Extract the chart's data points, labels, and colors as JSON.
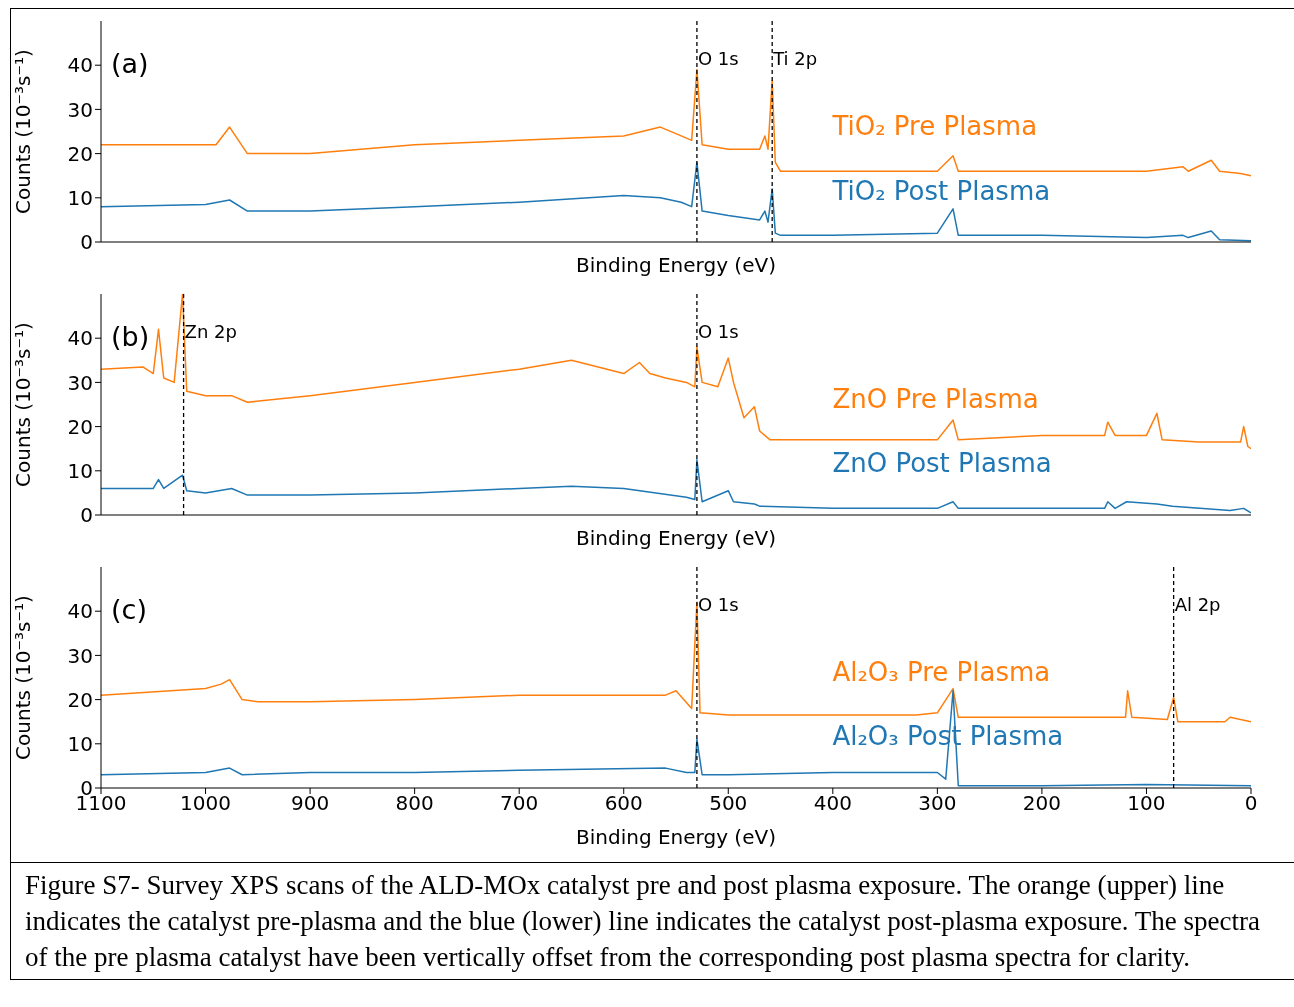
{
  "chart_data": [
    {
      "type": "line",
      "xlabel": "Binding Energy (eV)",
      "ylabel": "Counts (10⁻³s⁻¹)",
      "xlim": [
        1100,
        0
      ],
      "ylim": [
        0,
        50
      ],
      "xticks": [
        1100,
        1000,
        900,
        800,
        700,
        600,
        500,
        400,
        300,
        200,
        100,
        0
      ],
      "yticks": [
        0,
        10,
        20,
        30,
        40
      ],
      "tick_labels": "y",
      "grid": false,
      "legend": false,
      "marker": "none",
      "line_style": "solid",
      "annotations": [
        "(a)"
      ],
      "ref_lines": [
        {
          "axis": "x",
          "value": 530,
          "label": "O 1s",
          "color": "#000000",
          "line_style": "dashed"
        },
        {
          "axis": "x",
          "value": 458,
          "label": "Ti 2p",
          "color": "#000000",
          "line_style": "dashed"
        }
      ],
      "series": [
        {
          "name": "TiO₂ Pre Plasma",
          "color": "#ff7f0e",
          "x": [
            1100,
            1050,
            990,
            977,
            960,
            900,
            800,
            700,
            600,
            565,
            545,
            535,
            530,
            525,
            500,
            470,
            465,
            462,
            458,
            455,
            450,
            400,
            300,
            285,
            280,
            200,
            100,
            65,
            60,
            38,
            30,
            10,
            0
          ],
          "values": [
            22,
            22,
            22,
            26,
            20,
            20,
            22,
            23,
            24,
            26,
            24,
            23,
            39,
            22,
            21,
            21,
            24,
            21,
            36.5,
            18,
            16,
            16,
            16,
            19.5,
            16,
            16,
            16,
            17,
            16,
            18.5,
            16,
            15.5,
            15
          ]
        },
        {
          "name": "TiO₂ Post Plasma",
          "color": "#1f77b4",
          "x": [
            1100,
            1000,
            977,
            960,
            900,
            800,
            700,
            600,
            565,
            545,
            535,
            530,
            525,
            500,
            470,
            465,
            462,
            458,
            455,
            450,
            400,
            300,
            285,
            280,
            200,
            100,
            65,
            60,
            38,
            30,
            0
          ],
          "values": [
            8,
            8.5,
            9.5,
            7,
            7,
            8,
            9,
            10.5,
            10,
            9,
            8,
            18,
            7,
            6,
            5,
            7,
            4.5,
            12,
            2,
            1.5,
            1.5,
            2,
            7.5,
            1.5,
            1.5,
            1,
            1.5,
            1,
            2.5,
            0.5,
            0.3
          ]
        }
      ]
    },
    {
      "type": "line",
      "xlabel": "Binding Energy (eV)",
      "ylabel": "Counts (10⁻³s⁻¹)",
      "xlim": [
        1100,
        0
      ],
      "ylim": [
        0,
        50
      ],
      "xticks": [
        1100,
        1000,
        900,
        800,
        700,
        600,
        500,
        400,
        300,
        200,
        100,
        0
      ],
      "yticks": [
        0,
        10,
        20,
        30,
        40
      ],
      "tick_labels": "y",
      "grid": false,
      "legend": false,
      "marker": "none",
      "line_style": "solid",
      "annotations": [
        "(b)"
      ],
      "ref_lines": [
        {
          "axis": "x",
          "value": 1021,
          "label": "Zn 2p",
          "color": "#000000",
          "line_style": "dashed"
        },
        {
          "axis": "x",
          "value": 530,
          "label": "O 1s",
          "color": "#000000",
          "line_style": "dashed"
        }
      ],
      "series": [
        {
          "name": "ZnO Pre Plasma",
          "color": "#ff7f0e",
          "x": [
            1100,
            1060,
            1050,
            1045,
            1040,
            1030,
            1022,
            1018,
            1000,
            975,
            960,
            900,
            800,
            700,
            650,
            600,
            585,
            575,
            560,
            540,
            532,
            530,
            525,
            510,
            500,
            495,
            485,
            475,
            470,
            460,
            400,
            300,
            285,
            280,
            200,
            140,
            137,
            130,
            100,
            90,
            85,
            50,
            10,
            7,
            3,
            0
          ],
          "values": [
            33,
            33.5,
            32,
            42,
            31,
            30,
            50,
            28,
            27,
            27,
            25.5,
            27,
            30,
            33,
            35,
            32,
            34.5,
            32,
            31,
            30,
            29,
            38,
            30,
            29,
            35.5,
            30,
            22,
            24.5,
            19,
            17,
            17,
            17,
            21.5,
            17,
            18,
            18,
            21,
            18,
            18,
            23,
            17,
            16.5,
            16.5,
            20,
            15.5,
            15
          ]
        },
        {
          "name": "ZnO Post Plasma",
          "color": "#1f77b4",
          "x": [
            1100,
            1050,
            1045,
            1040,
            1022,
            1018,
            1000,
            975,
            960,
            900,
            800,
            700,
            650,
            600,
            540,
            532,
            530,
            525,
            500,
            495,
            475,
            470,
            400,
            300,
            285,
            280,
            140,
            137,
            130,
            119,
            90,
            75,
            20,
            7,
            0
          ],
          "values": [
            6,
            6,
            8,
            6,
            9,
            5.5,
            5,
            6,
            4.5,
            4.5,
            5,
            6,
            6.5,
            6,
            4,
            3.5,
            12.5,
            3,
            5.5,
            3,
            2.5,
            2,
            1.5,
            1.5,
            3,
            1.5,
            1.5,
            3,
            1.5,
            3,
            2.5,
            2,
            1,
            1.5,
            0.5
          ]
        }
      ]
    },
    {
      "type": "line",
      "xlabel": "Binding Energy (eV)",
      "ylabel": "Counts (10⁻³s⁻¹)",
      "xlim": [
        1100,
        0
      ],
      "ylim": [
        0,
        50
      ],
      "xticks": [
        1100,
        1000,
        900,
        800,
        700,
        600,
        500,
        400,
        300,
        200,
        100,
        0
      ],
      "yticks": [
        0,
        10,
        20,
        30,
        40
      ],
      "grid": false,
      "legend": false,
      "marker": "none",
      "line_style": "solid",
      "annotations": [
        "(c)",
        "Figure S7- Survey XPS scans of the ALD-MOx catalyst pre and post plasma exposure. The orange (upper) line indicates the catalyst pre-plasma and the blue (lower) line indicates the catalyst post-plasma exposure. The spectra of the pre plasma catalyst have been vertically offset from the corresponding post plasma spectra for clarity."
      ],
      "ref_lines": [
        {
          "axis": "x",
          "value": 530,
          "label": "O 1s",
          "color": "#000000",
          "line_style": "dashed"
        },
        {
          "axis": "x",
          "value": 74,
          "label": "Al 2p",
          "color": "#000000",
          "line_style": "dashed"
        }
      ],
      "series": [
        {
          "name": "Al₂O₃ Pre Plasma",
          "color": "#ff7f0e",
          "x": [
            1100,
            1000,
            985,
            977,
            965,
            950,
            900,
            800,
            700,
            560,
            550,
            535,
            530,
            527,
            500,
            400,
            320,
            300,
            285,
            280,
            200,
            120,
            118,
            114,
            80,
            74,
            70,
            25,
            20,
            0
          ],
          "values": [
            21,
            22.5,
            23.5,
            24.5,
            20,
            19.5,
            19.5,
            20,
            21,
            21,
            22,
            18,
            42,
            17,
            16.5,
            16.5,
            16.5,
            17,
            22.5,
            16,
            16,
            16,
            22,
            16,
            15.5,
            20.5,
            15,
            15,
            16,
            15
          ]
        },
        {
          "name": "Al₂O₃ Post Plasma",
          "color": "#1f77b4",
          "x": [
            1100,
            1000,
            977,
            965,
            900,
            800,
            700,
            560,
            540,
            532,
            530,
            525,
            500,
            400,
            320,
            300,
            292,
            285,
            280,
            200,
            100,
            0
          ],
          "values": [
            3,
            3.5,
            4.5,
            3,
            3.5,
            3.5,
            4,
            4.5,
            3.5,
            3.5,
            11,
            3,
            3,
            3.5,
            3.5,
            3.5,
            2,
            22,
            0.5,
            0.5,
            0.8,
            0.5
          ]
        }
      ]
    }
  ]
}
